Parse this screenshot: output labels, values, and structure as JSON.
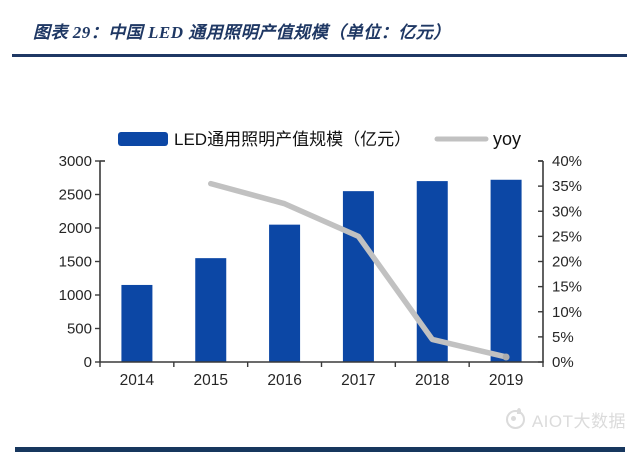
{
  "header": {
    "title": "图表 29：中国 LED 通用照明产值规模（单位：亿元）"
  },
  "chart_data": {
    "type": "bar",
    "combo": "bar+line",
    "title": "",
    "categories": [
      "2014",
      "2015",
      "2016",
      "2017",
      "2018",
      "2019"
    ],
    "series": [
      {
        "name": "LED通用照明产值规模（亿元）",
        "type": "bar",
        "axis": "left",
        "color": "#0C47A5",
        "values": [
          1150,
          1550,
          2050,
          2550,
          2700,
          2720
        ]
      },
      {
        "name": "yoy",
        "type": "line",
        "axis": "right",
        "color": "#C1C1C1",
        "values": [
          null,
          35.5,
          31.5,
          25,
          4.5,
          1
        ]
      }
    ],
    "left_axis": {
      "min": 0,
      "max": 3000,
      "step": 500,
      "ticks": [
        "0",
        "500",
        "1000",
        "1500",
        "2000",
        "2500",
        "3000"
      ]
    },
    "right_axis": {
      "min": 0,
      "max": 40,
      "step": 5,
      "ticks": [
        "0%",
        "5%",
        "10%",
        "15%",
        "20%",
        "25%",
        "30%",
        "35%",
        "40%"
      ]
    },
    "legend_position": "top",
    "grid": false
  },
  "footer": {
    "watermark": "AIOT大数据"
  },
  "colors": {
    "navy": "#1F3864",
    "rule": "#17375E",
    "bar": "#0C47A5",
    "line": "#C1C1C1",
    "watermark": "#DBDBDB",
    "axis": "#262626",
    "axis_line": "#3A3A3A"
  }
}
